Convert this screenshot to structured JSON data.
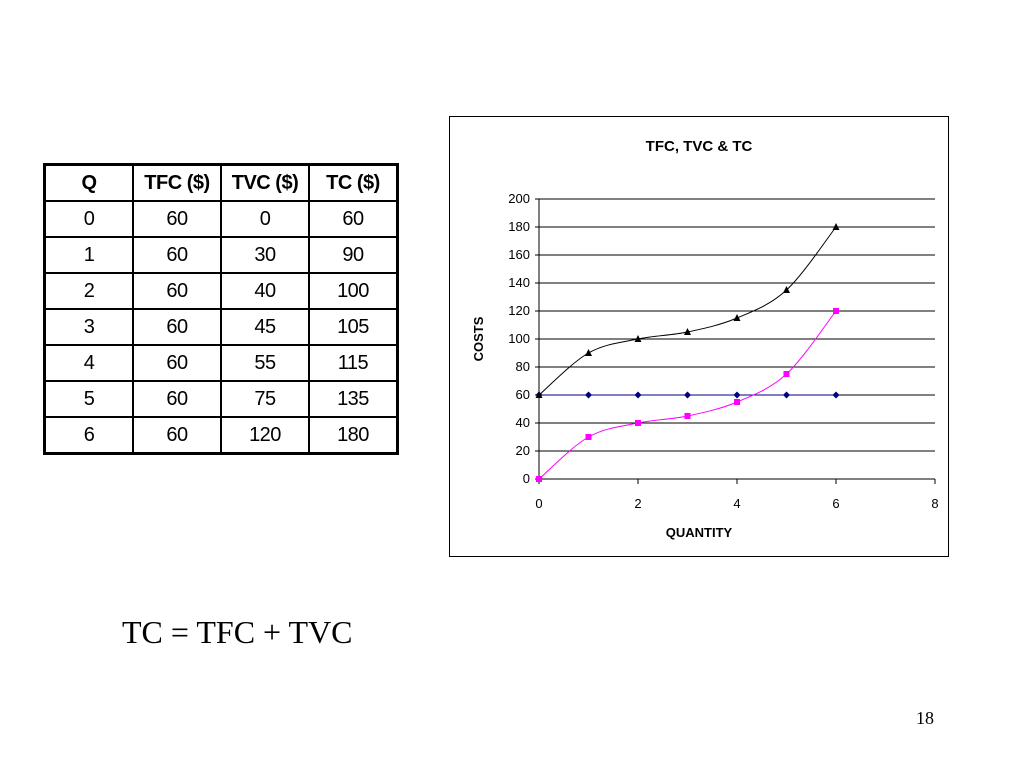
{
  "table": {
    "headers": [
      "Q",
      "TFC ($)",
      "TVC ($)",
      "TC ($)"
    ],
    "rows": [
      [
        "0",
        "60",
        "0",
        "60"
      ],
      [
        "1",
        "60",
        "30",
        "90"
      ],
      [
        "2",
        "60",
        "40",
        "100"
      ],
      [
        "3",
        "60",
        "45",
        "105"
      ],
      [
        "4",
        "60",
        "55",
        "115"
      ],
      [
        "5",
        "60",
        "75",
        "135"
      ],
      [
        "6",
        "60",
        "120",
        "180"
      ]
    ]
  },
  "chart_data": {
    "type": "line",
    "title": "TFC, TVC  & TC",
    "xlabel": "QUANTITY",
    "ylabel": "COSTS",
    "xlim": [
      0,
      8
    ],
    "ylim": [
      0,
      200
    ],
    "xticks": [
      "0",
      "2",
      "4",
      "6",
      "8"
    ],
    "yticks": [
      "0",
      "20",
      "40",
      "60",
      "80",
      "100",
      "120",
      "140",
      "160",
      "180",
      "200"
    ],
    "grid": "horizontal",
    "x": [
      0,
      1,
      2,
      3,
      4,
      5,
      6
    ],
    "series": [
      {
        "values": [
          60,
          60,
          60,
          60,
          60,
          60,
          60
        ],
        "color": "#000080",
        "marker": "diamond",
        "smooth": false
      },
      {
        "values": [
          0,
          30,
          40,
          45,
          55,
          75,
          120
        ],
        "color": "#ff00ff",
        "marker": "square",
        "smooth": true
      },
      {
        "values": [
          60,
          90,
          100,
          105,
          115,
          135,
          180
        ],
        "color": "#000000",
        "marker": "triangle",
        "smooth": true
      }
    ]
  },
  "formula": "TC = TFC + TVC",
  "slide_number": "18"
}
